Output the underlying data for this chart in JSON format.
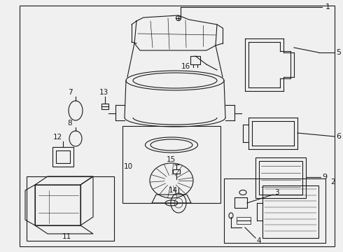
{
  "bg_color": "#f0f0f0",
  "line_color": "#1a1a1a",
  "text_color": "#1a1a1a",
  "figsize": [
    4.9,
    3.6
  ],
  "dpi": 100
}
